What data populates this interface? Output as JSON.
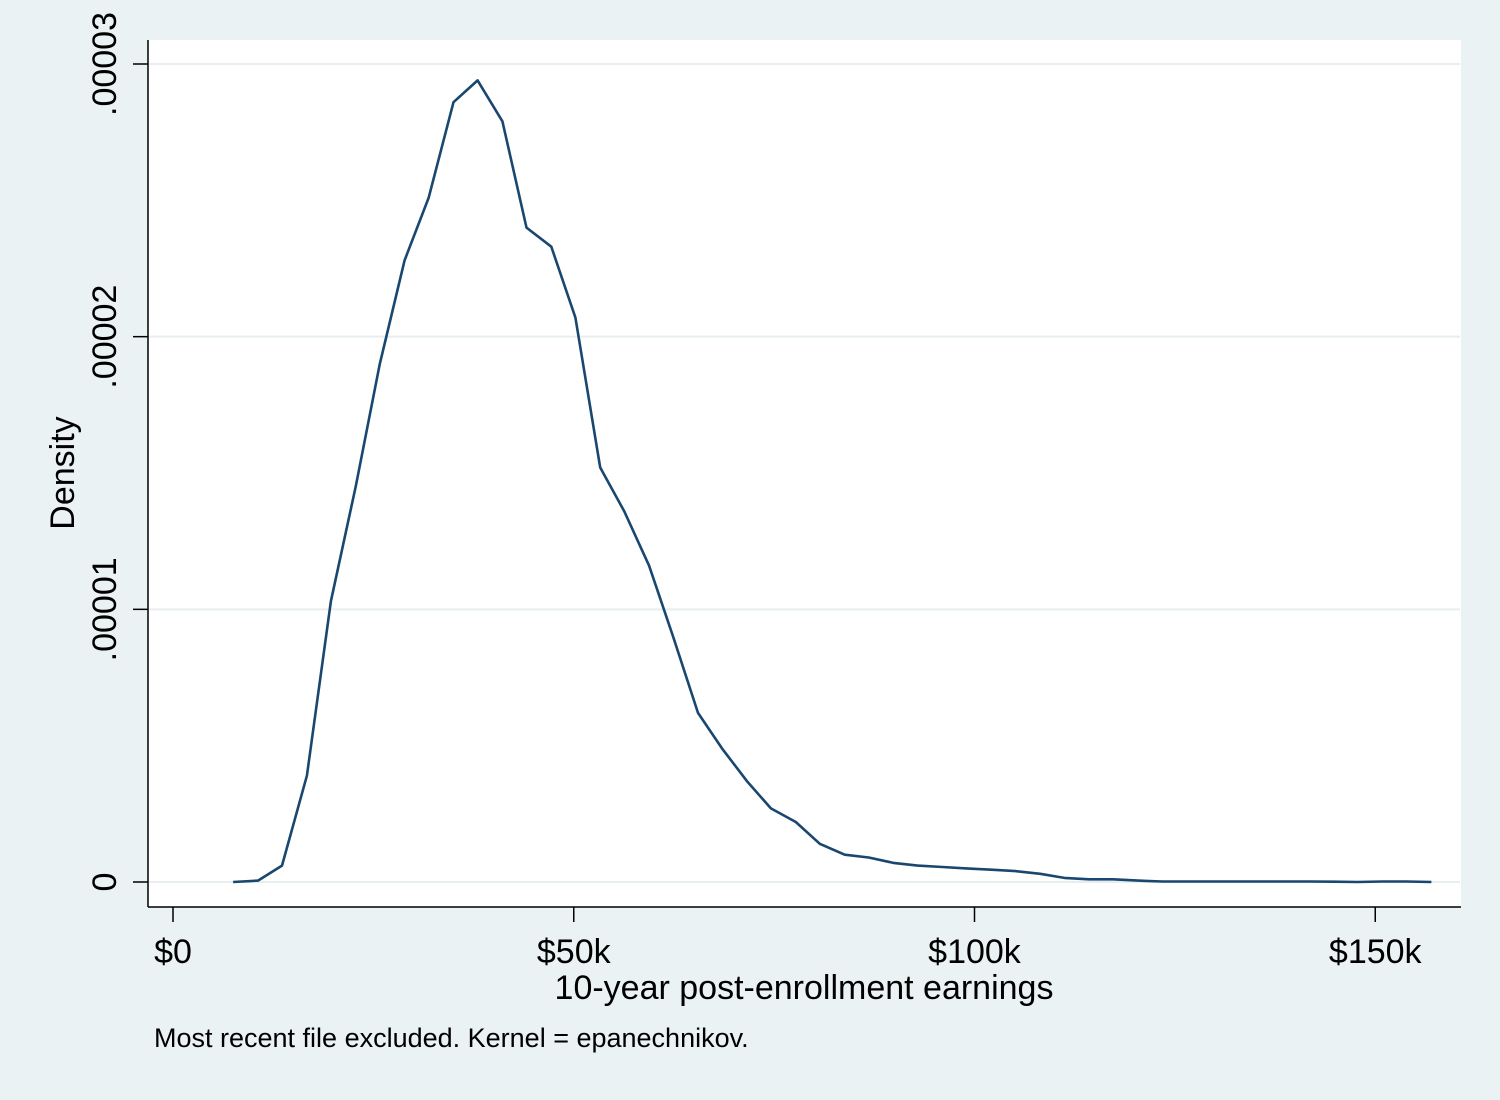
{
  "chart_data": {
    "type": "line",
    "title": "",
    "xlabel": "10-year post-enrollment earnings",
    "ylabel": "Density",
    "note": "Most recent file excluded. Kernel = epanechnikov.",
    "xlim": [
      0,
      160000
    ],
    "ylim": [
      0,
      3e-05
    ],
    "x_ticks": [
      {
        "value": 0,
        "label": "$0"
      },
      {
        "value": 50000,
        "label": "$50k"
      },
      {
        "value": 100000,
        "label": "$100k"
      },
      {
        "value": 150000,
        "label": "$150k"
      }
    ],
    "y_ticks": [
      {
        "value": 0,
        "label": "0"
      },
      {
        "value": 1e-05,
        "label": ".00001"
      },
      {
        "value": 2e-05,
        "label": ".00002"
      },
      {
        "value": 3e-05,
        "label": ".00003"
      }
    ],
    "grid": "horizontal",
    "line_color": "#1a476f",
    "background_color": "#eaf2f3",
    "plot_background_color": "#ffffff",
    "series": [
      {
        "x": [
          7500,
          10600,
          13600,
          16700,
          19700,
          22800,
          25800,
          28900,
          31900,
          35000,
          38000,
          41100,
          44100,
          47200,
          50200,
          53300,
          56300,
          59400,
          62400,
          65500,
          68500,
          71600,
          74600,
          77700,
          80700,
          83800,
          86800,
          89900,
          92900,
          96000,
          99000,
          102100,
          105100,
          108200,
          111200,
          114300,
          117300,
          120400,
          123400,
          126500,
          129500,
          132600,
          135600,
          138700,
          141700,
          144800,
          147800,
          150900,
          153900,
          157000
        ],
        "values": [
          0.0,
          5e-08,
          6e-07,
          3.9e-06,
          1.03e-05,
          1.45e-05,
          1.9e-05,
          2.28e-05,
          2.51e-05,
          2.86e-05,
          2.94e-05,
          2.79e-05,
          2.4e-05,
          2.33e-05,
          2.07e-05,
          1.52e-05,
          1.36e-05,
          1.16e-05,
          9e-06,
          6.2e-06,
          4.9e-06,
          3.7e-06,
          2.7e-06,
          2.2e-06,
          1.4e-06,
          1e-06,
          9e-07,
          7e-07,
          6e-07,
          5.5e-07,
          5e-07,
          4.5e-07,
          4e-07,
          3e-07,
          1.5e-07,
          1e-07,
          1e-07,
          5e-08,
          2e-08,
          2e-08,
          2e-08,
          2e-08,
          2e-08,
          2e-08,
          2e-08,
          1e-08,
          0.0,
          2e-08,
          2e-08,
          0.0
        ]
      }
    ]
  }
}
